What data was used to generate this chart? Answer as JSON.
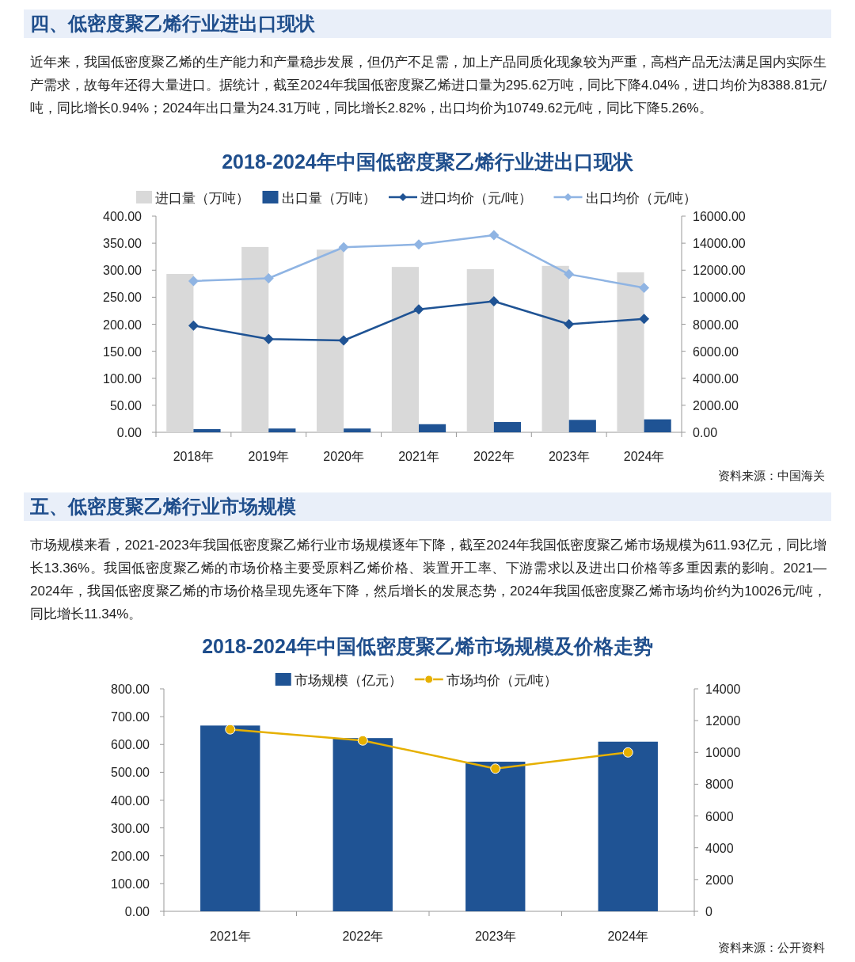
{
  "chart_data": [
    {
      "type": "bar",
      "title": "2018-2024年中国低密度聚乙烯行业进出口现状",
      "annotations": [
        "四、低密度聚乙烯行业进出口现状",
        "近年来，我国低密度聚乙烯的生产能力和产量稳步发展，但仍产不足需，加上产品同质化现象较为严重，高档产品无法满足国内实际生产需求，故每年还得大量进口。据统计，截至2024年我国低密度聚乙烯进口量为295.62万吨，同比下降4.04%，进口均价为8388.81元/吨，同比增长0.94%；2024年出口量为24.31万吨，同比增长2.82%，出口均价为10749.62元/吨，同比下降5.26%。",
        "资料来源：中国海关"
      ],
      "categories": [
        "2018年",
        "2019年",
        "2020年",
        "2021年",
        "2022年",
        "2023年",
        "2024年"
      ],
      "series": [
        {
          "name": "进口量（万吨）",
          "color": "#d9d9d9",
          "values": [
            293,
            343,
            338,
            306,
            302,
            308,
            296
          ]
        },
        {
          "name": "出口量（万吨）",
          "color": "#1f5394",
          "values": [
            6,
            7,
            7,
            15,
            19,
            23,
            24
          ]
        },
        {
          "name": "进口均价（元/吨）",
          "type": "line",
          "axis": "y2",
          "marker": "diamond",
          "color": "#1f5394",
          "values": [
            7900,
            6900,
            6800,
            9100,
            9700,
            8000,
            8400
          ]
        },
        {
          "name": "出口均价（元/吨）",
          "type": "line",
          "axis": "y2",
          "marker": "diamond",
          "color": "#8fb4e3",
          "values": [
            11200,
            11400,
            13700,
            13900,
            14600,
            11700,
            10700
          ]
        }
      ],
      "ylim": [
        0,
        400
      ],
      "yticks": [
        {
          "value": 0,
          "label": "0.00"
        },
        {
          "value": 50,
          "label": "50.00"
        },
        {
          "value": 100,
          "label": "100.00"
        },
        {
          "value": 150,
          "label": "150.00"
        },
        {
          "value": 200,
          "label": "200.00"
        },
        {
          "value": 250,
          "label": "250.00"
        },
        {
          "value": 300,
          "label": "300.00"
        },
        {
          "value": 350,
          "label": "350.00"
        },
        {
          "value": 400,
          "label": "400.00"
        }
      ],
      "y2lim": [
        0,
        16000
      ],
      "y2ticks": [
        {
          "value": 0,
          "label": "0.00"
        },
        {
          "value": 2000,
          "label": "2000.00"
        },
        {
          "value": 4000,
          "label": "4000.00"
        },
        {
          "value": 6000,
          "label": "6000.00"
        },
        {
          "value": 8000,
          "label": "8000.00"
        },
        {
          "value": 10000,
          "label": "10000.00"
        },
        {
          "value": 12000,
          "label": "12000.00"
        },
        {
          "value": 14000,
          "label": "14000.00"
        },
        {
          "value": 16000,
          "label": "16000.00"
        }
      ],
      "legend": "top",
      "grid": false
    },
    {
      "type": "bar",
      "title": "2018-2024年中国低密度聚乙烯市场规模及价格走势",
      "annotations": [
        "五、低密度聚乙烯行业市场规模",
        "市场规模来看，2021-2023年我国低密度聚乙烯行业市场规模逐年下降，截至2024年我国低密度聚乙烯市场规模为611.93亿元，同比增长13.36%。我国低密度聚乙烯的市场价格主要受原料乙烯价格、装置开工率、下游需求以及进出口价格等多重因素的影响。2021—2024年，我国低密度聚乙烯的市场价格呈现先逐年下降，然后增长的发展态势，2024年我国低密度聚乙烯市场均价约为10026元/吨，同比增长11.34%。",
        "资料来源：公开资料"
      ],
      "categories": [
        "2021年",
        "2022年",
        "2023年",
        "2024年"
      ],
      "series": [
        {
          "name": "市场规模（亿元）",
          "color": "#1f5394",
          "values": [
            668,
            623,
            538,
            610
          ]
        },
        {
          "name": "市场均价（元/吨）",
          "type": "line",
          "axis": "y2",
          "marker": "circle",
          "color": "#e6b000",
          "values": [
            11450,
            10750,
            8980,
            10000
          ]
        }
      ],
      "ylim": [
        0,
        800
      ],
      "yticks": [
        {
          "value": 0,
          "label": "0.00"
        },
        {
          "value": 100,
          "label": "100.00"
        },
        {
          "value": 200,
          "label": "200.00"
        },
        {
          "value": 300,
          "label": "300.00"
        },
        {
          "value": 400,
          "label": "400.00"
        },
        {
          "value": 500,
          "label": "500.00"
        },
        {
          "value": 600,
          "label": "600.00"
        },
        {
          "value": 700,
          "label": "700.00"
        },
        {
          "value": 800,
          "label": "800.00"
        }
      ],
      "y2lim": [
        0,
        14000
      ],
      "y2ticks": [
        0,
        2000,
        4000,
        6000,
        8000,
        10000,
        12000,
        14000
      ],
      "legend": "top",
      "grid": false
    }
  ]
}
